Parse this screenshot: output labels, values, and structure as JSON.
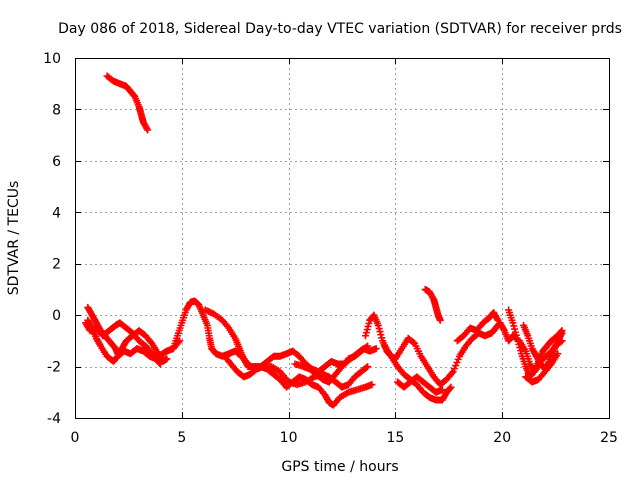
{
  "chart_data": {
    "type": "scatter",
    "title": "Day 086 of 2018, Sidereal Day-to-day VTEC variation (SDTVAR) for receiver prds",
    "xlabel": "GPS time / hours",
    "ylabel": "SDTVAR / TECUs",
    "xlim": [
      0,
      25
    ],
    "ylim": [
      -4,
      10
    ],
    "xticks": [
      0,
      5,
      10,
      15,
      20,
      25
    ],
    "yticks": [
      -4,
      -2,
      0,
      2,
      4,
      6,
      8,
      10
    ],
    "grid": true,
    "marker": "+",
    "marker_color": "#ff0000",
    "tracks": [
      {
        "name": "track-1",
        "points": [
          [
            1.5,
            9.3
          ],
          [
            1.8,
            9.1
          ],
          [
            2.1,
            9.0
          ],
          [
            2.4,
            8.9
          ],
          [
            2.6,
            8.7
          ],
          [
            2.8,
            8.5
          ],
          [
            3.0,
            8.1
          ],
          [
            3.1,
            7.8
          ],
          [
            3.2,
            7.5
          ],
          [
            3.4,
            7.2
          ]
        ]
      },
      {
        "name": "track-2",
        "points": [
          [
            0.6,
            0.3
          ],
          [
            0.8,
            0.0
          ],
          [
            1.0,
            -0.3
          ],
          [
            1.2,
            -0.6
          ],
          [
            1.3,
            -0.7
          ],
          [
            1.5,
            -0.9
          ],
          [
            1.7,
            -1.1
          ],
          [
            1.9,
            -1.3
          ],
          [
            2.0,
            -1.5
          ],
          [
            2.2,
            -1.3
          ],
          [
            2.4,
            -1.0
          ],
          [
            2.7,
            -0.8
          ],
          [
            3.0,
            -0.6
          ],
          [
            3.3,
            -0.8
          ],
          [
            3.6,
            -1.1
          ],
          [
            3.9,
            -1.5
          ],
          [
            4.1,
            -1.8
          ],
          [
            4.3,
            -1.7
          ]
        ]
      },
      {
        "name": "track-3",
        "points": [
          [
            0.6,
            -0.2
          ],
          [
            0.8,
            -0.5
          ],
          [
            1.0,
            -0.9
          ],
          [
            1.2,
            -1.2
          ],
          [
            1.5,
            -1.6
          ],
          [
            1.8,
            -1.8
          ],
          [
            2.0,
            -1.6
          ],
          [
            2.3,
            -1.4
          ],
          [
            2.6,
            -1.5
          ],
          [
            2.9,
            -1.3
          ],
          [
            3.2,
            -1.4
          ],
          [
            3.5,
            -1.6
          ],
          [
            3.8,
            -1.7
          ],
          [
            4.1,
            -1.5
          ],
          [
            4.3,
            -1.4
          ],
          [
            4.6,
            -1.3
          ],
          [
            4.9,
            -1.0
          ]
        ]
      },
      {
        "name": "track-4",
        "points": [
          [
            0.5,
            -0.3
          ],
          [
            0.7,
            -0.6
          ],
          [
            1.0,
            -0.5
          ],
          [
            1.3,
            -0.8
          ],
          [
            1.6,
            -0.6
          ],
          [
            1.9,
            -0.4
          ],
          [
            2.1,
            -0.3
          ],
          [
            2.4,
            -0.5
          ],
          [
            2.7,
            -0.7
          ],
          [
            3.0,
            -1.0
          ],
          [
            3.3,
            -1.2
          ],
          [
            3.5,
            -1.4
          ],
          [
            3.7,
            -1.6
          ],
          [
            3.9,
            -1.8
          ],
          [
            4.0,
            -1.9
          ]
        ]
      },
      {
        "name": "track-5",
        "points": [
          [
            4.6,
            -1.3
          ],
          [
            4.8,
            -0.8
          ],
          [
            5.0,
            -0.3
          ],
          [
            5.2,
            0.2
          ],
          [
            5.4,
            0.5
          ],
          [
            5.6,
            0.55
          ],
          [
            5.8,
            0.4
          ],
          [
            6.0,
            0.0
          ],
          [
            6.2,
            -0.4
          ],
          [
            6.3,
            -0.9
          ],
          [
            6.4,
            -1.3
          ],
          [
            6.6,
            -1.5
          ],
          [
            6.9,
            -1.6
          ],
          [
            7.2,
            -1.5
          ],
          [
            7.5,
            -1.4
          ],
          [
            7.8,
            -1.6
          ],
          [
            8.1,
            -1.9
          ],
          [
            8.4,
            -2.1
          ],
          [
            8.7,
            -2.0
          ],
          [
            9.0,
            -1.8
          ],
          [
            9.3,
            -1.6
          ],
          [
            9.6,
            -1.6
          ],
          [
            9.9,
            -1.5
          ],
          [
            10.2,
            -1.4
          ],
          [
            10.5,
            -1.6
          ],
          [
            10.8,
            -1.9
          ],
          [
            11.1,
            -2.1
          ],
          [
            11.4,
            -2.2
          ],
          [
            11.7,
            -2.0
          ],
          [
            12.0,
            -1.8
          ],
          [
            12.3,
            -1.9
          ],
          [
            12.6,
            -1.9
          ],
          [
            12.9,
            -1.7
          ],
          [
            13.2,
            -1.5
          ],
          [
            13.5,
            -1.3
          ],
          [
            13.8,
            -1.4
          ],
          [
            14.1,
            -1.3
          ]
        ]
      },
      {
        "name": "track-6",
        "points": [
          [
            6.1,
            0.2
          ],
          [
            6.5,
            0.05
          ],
          [
            6.9,
            -0.2
          ],
          [
            7.2,
            -0.5
          ],
          [
            7.5,
            -0.9
          ],
          [
            7.7,
            -1.3
          ],
          [
            7.9,
            -1.7
          ],
          [
            8.1,
            -2.0
          ],
          [
            8.4,
            -2.0
          ],
          [
            8.7,
            -2.0
          ],
          [
            9.0,
            -2.1
          ],
          [
            9.3,
            -2.3
          ],
          [
            9.6,
            -2.5
          ],
          [
            9.9,
            -2.8
          ],
          [
            10.2,
            -2.6
          ],
          [
            10.5,
            -2.4
          ],
          [
            10.8,
            -2.5
          ],
          [
            11.1,
            -2.7
          ],
          [
            11.4,
            -2.8
          ],
          [
            11.7,
            -3.1
          ],
          [
            11.9,
            -3.4
          ],
          [
            12.1,
            -3.5
          ],
          [
            12.4,
            -3.2
          ],
          [
            12.8,
            -3.0
          ],
          [
            13.2,
            -2.9
          ],
          [
            13.6,
            -2.8
          ],
          [
            13.9,
            -2.7
          ]
        ]
      },
      {
        "name": "track-7",
        "points": [
          [
            7.0,
            -1.6
          ],
          [
            7.3,
            -1.9
          ],
          [
            7.6,
            -2.2
          ],
          [
            7.9,
            -2.4
          ],
          [
            8.2,
            -2.3
          ],
          [
            8.5,
            -2.1
          ],
          [
            8.8,
            -2.0
          ],
          [
            9.2,
            -2.0
          ],
          [
            9.6,
            -2.2
          ],
          [
            10.0,
            -2.6
          ],
          [
            10.4,
            -2.7
          ],
          [
            10.8,
            -2.6
          ],
          [
            11.2,
            -2.4
          ],
          [
            11.6,
            -2.3
          ],
          [
            11.9,
            -2.4
          ],
          [
            12.2,
            -2.6
          ],
          [
            12.5,
            -2.8
          ],
          [
            12.8,
            -2.7
          ],
          [
            13.1,
            -2.4
          ],
          [
            13.4,
            -2.2
          ],
          [
            13.7,
            -2.0
          ]
        ]
      },
      {
        "name": "track-8",
        "points": [
          [
            10.3,
            -1.9
          ],
          [
            10.7,
            -2.0
          ],
          [
            11.0,
            -2.1
          ],
          [
            11.3,
            -2.3
          ],
          [
            11.6,
            -2.5
          ],
          [
            11.9,
            -2.6
          ],
          [
            12.2,
            -2.3
          ],
          [
            12.5,
            -2.0
          ],
          [
            12.8,
            -1.7
          ],
          [
            13.1,
            -1.6
          ],
          [
            13.4,
            -1.4
          ],
          [
            13.7,
            -1.2
          ]
        ]
      },
      {
        "name": "track-9",
        "points": [
          [
            13.6,
            -0.8
          ],
          [
            13.8,
            -0.2
          ],
          [
            14.0,
            0.0
          ],
          [
            14.2,
            -0.4
          ],
          [
            14.4,
            -1.0
          ],
          [
            14.6,
            -1.4
          ],
          [
            14.8,
            -1.6
          ],
          [
            15.0,
            -1.7
          ],
          [
            15.3,
            -1.3
          ],
          [
            15.6,
            -0.9
          ],
          [
            15.9,
            -1.1
          ],
          [
            16.2,
            -1.6
          ],
          [
            16.5,
            -2.0
          ],
          [
            16.8,
            -2.4
          ],
          [
            17.1,
            -2.7
          ],
          [
            17.4,
            -2.5
          ],
          [
            17.7,
            -2.2
          ],
          [
            18.0,
            -1.6
          ],
          [
            18.3,
            -1.2
          ],
          [
            18.6,
            -0.9
          ],
          [
            18.9,
            -0.7
          ],
          [
            19.2,
            -0.8
          ],
          [
            19.5,
            -0.7
          ],
          [
            19.7,
            -0.5
          ],
          [
            19.9,
            -0.3
          ],
          [
            20.1,
            -0.6
          ],
          [
            20.3,
            -1.0
          ],
          [
            20.5,
            -0.8
          ],
          [
            20.8,
            -1.0
          ],
          [
            21.1,
            -1.4
          ],
          [
            21.3,
            -1.9
          ],
          [
            21.5,
            -2.2
          ],
          [
            21.7,
            -1.8
          ],
          [
            21.9,
            -1.4
          ],
          [
            22.1,
            -1.2
          ],
          [
            22.3,
            -1.0
          ],
          [
            22.6,
            -0.8
          ],
          [
            22.8,
            -0.6
          ]
        ]
      },
      {
        "name": "track-10",
        "points": [
          [
            14.5,
            -1.2
          ],
          [
            14.8,
            -1.6
          ],
          [
            15.1,
            -2.0
          ],
          [
            15.4,
            -2.3
          ],
          [
            15.7,
            -2.5
          ],
          [
            16.0,
            -2.7
          ],
          [
            16.3,
            -3.0
          ],
          [
            16.6,
            -3.2
          ],
          [
            16.9,
            -3.3
          ],
          [
            17.2,
            -3.3
          ],
          [
            17.4,
            -3.0
          ],
          [
            17.6,
            -2.8
          ]
        ]
      },
      {
        "name": "track-11",
        "points": [
          [
            15.1,
            -2.6
          ],
          [
            15.4,
            -2.8
          ],
          [
            15.7,
            -2.6
          ],
          [
            16.0,
            -2.4
          ],
          [
            16.3,
            -2.6
          ],
          [
            16.6,
            -2.8
          ],
          [
            16.9,
            -3.0
          ],
          [
            17.2,
            -2.9
          ]
        ]
      },
      {
        "name": "track-12",
        "points": [
          [
            16.4,
            1.0
          ],
          [
            16.6,
            0.9
          ],
          [
            16.8,
            0.6
          ],
          [
            16.9,
            0.3
          ],
          [
            17.0,
            0.0
          ],
          [
            17.1,
            -0.2
          ]
        ]
      },
      {
        "name": "track-13",
        "points": [
          [
            17.9,
            -1.0
          ],
          [
            18.2,
            -0.8
          ],
          [
            18.5,
            -0.5
          ],
          [
            18.8,
            -0.6
          ],
          [
            19.1,
            -0.3
          ],
          [
            19.4,
            -0.1
          ],
          [
            19.6,
            0.1
          ],
          [
            19.8,
            -0.2
          ]
        ]
      },
      {
        "name": "track-14",
        "points": [
          [
            20.3,
            0.2
          ],
          [
            20.5,
            -0.3
          ],
          [
            20.7,
            -0.9
          ],
          [
            20.9,
            -1.5
          ],
          [
            21.1,
            -2.0
          ],
          [
            21.3,
            -2.4
          ],
          [
            21.6,
            -2.1
          ],
          [
            21.9,
            -1.7
          ],
          [
            22.2,
            -1.5
          ],
          [
            22.5,
            -1.2
          ],
          [
            22.8,
            -1.0
          ]
        ]
      },
      {
        "name": "track-15",
        "points": [
          [
            21.0,
            -0.4
          ],
          [
            21.2,
            -0.8
          ],
          [
            21.4,
            -1.3
          ],
          [
            21.6,
            -1.6
          ],
          [
            21.8,
            -1.9
          ],
          [
            22.0,
            -2.1
          ],
          [
            22.2,
            -1.8
          ],
          [
            22.4,
            -1.4
          ],
          [
            22.6,
            -1.0
          ],
          [
            22.8,
            -0.7
          ]
        ]
      },
      {
        "name": "track-16",
        "points": [
          [
            21.1,
            -2.4
          ],
          [
            21.4,
            -2.6
          ],
          [
            21.7,
            -2.5
          ],
          [
            22.0,
            -2.2
          ],
          [
            22.3,
            -1.9
          ],
          [
            22.6,
            -1.5
          ]
        ]
      }
    ]
  }
}
